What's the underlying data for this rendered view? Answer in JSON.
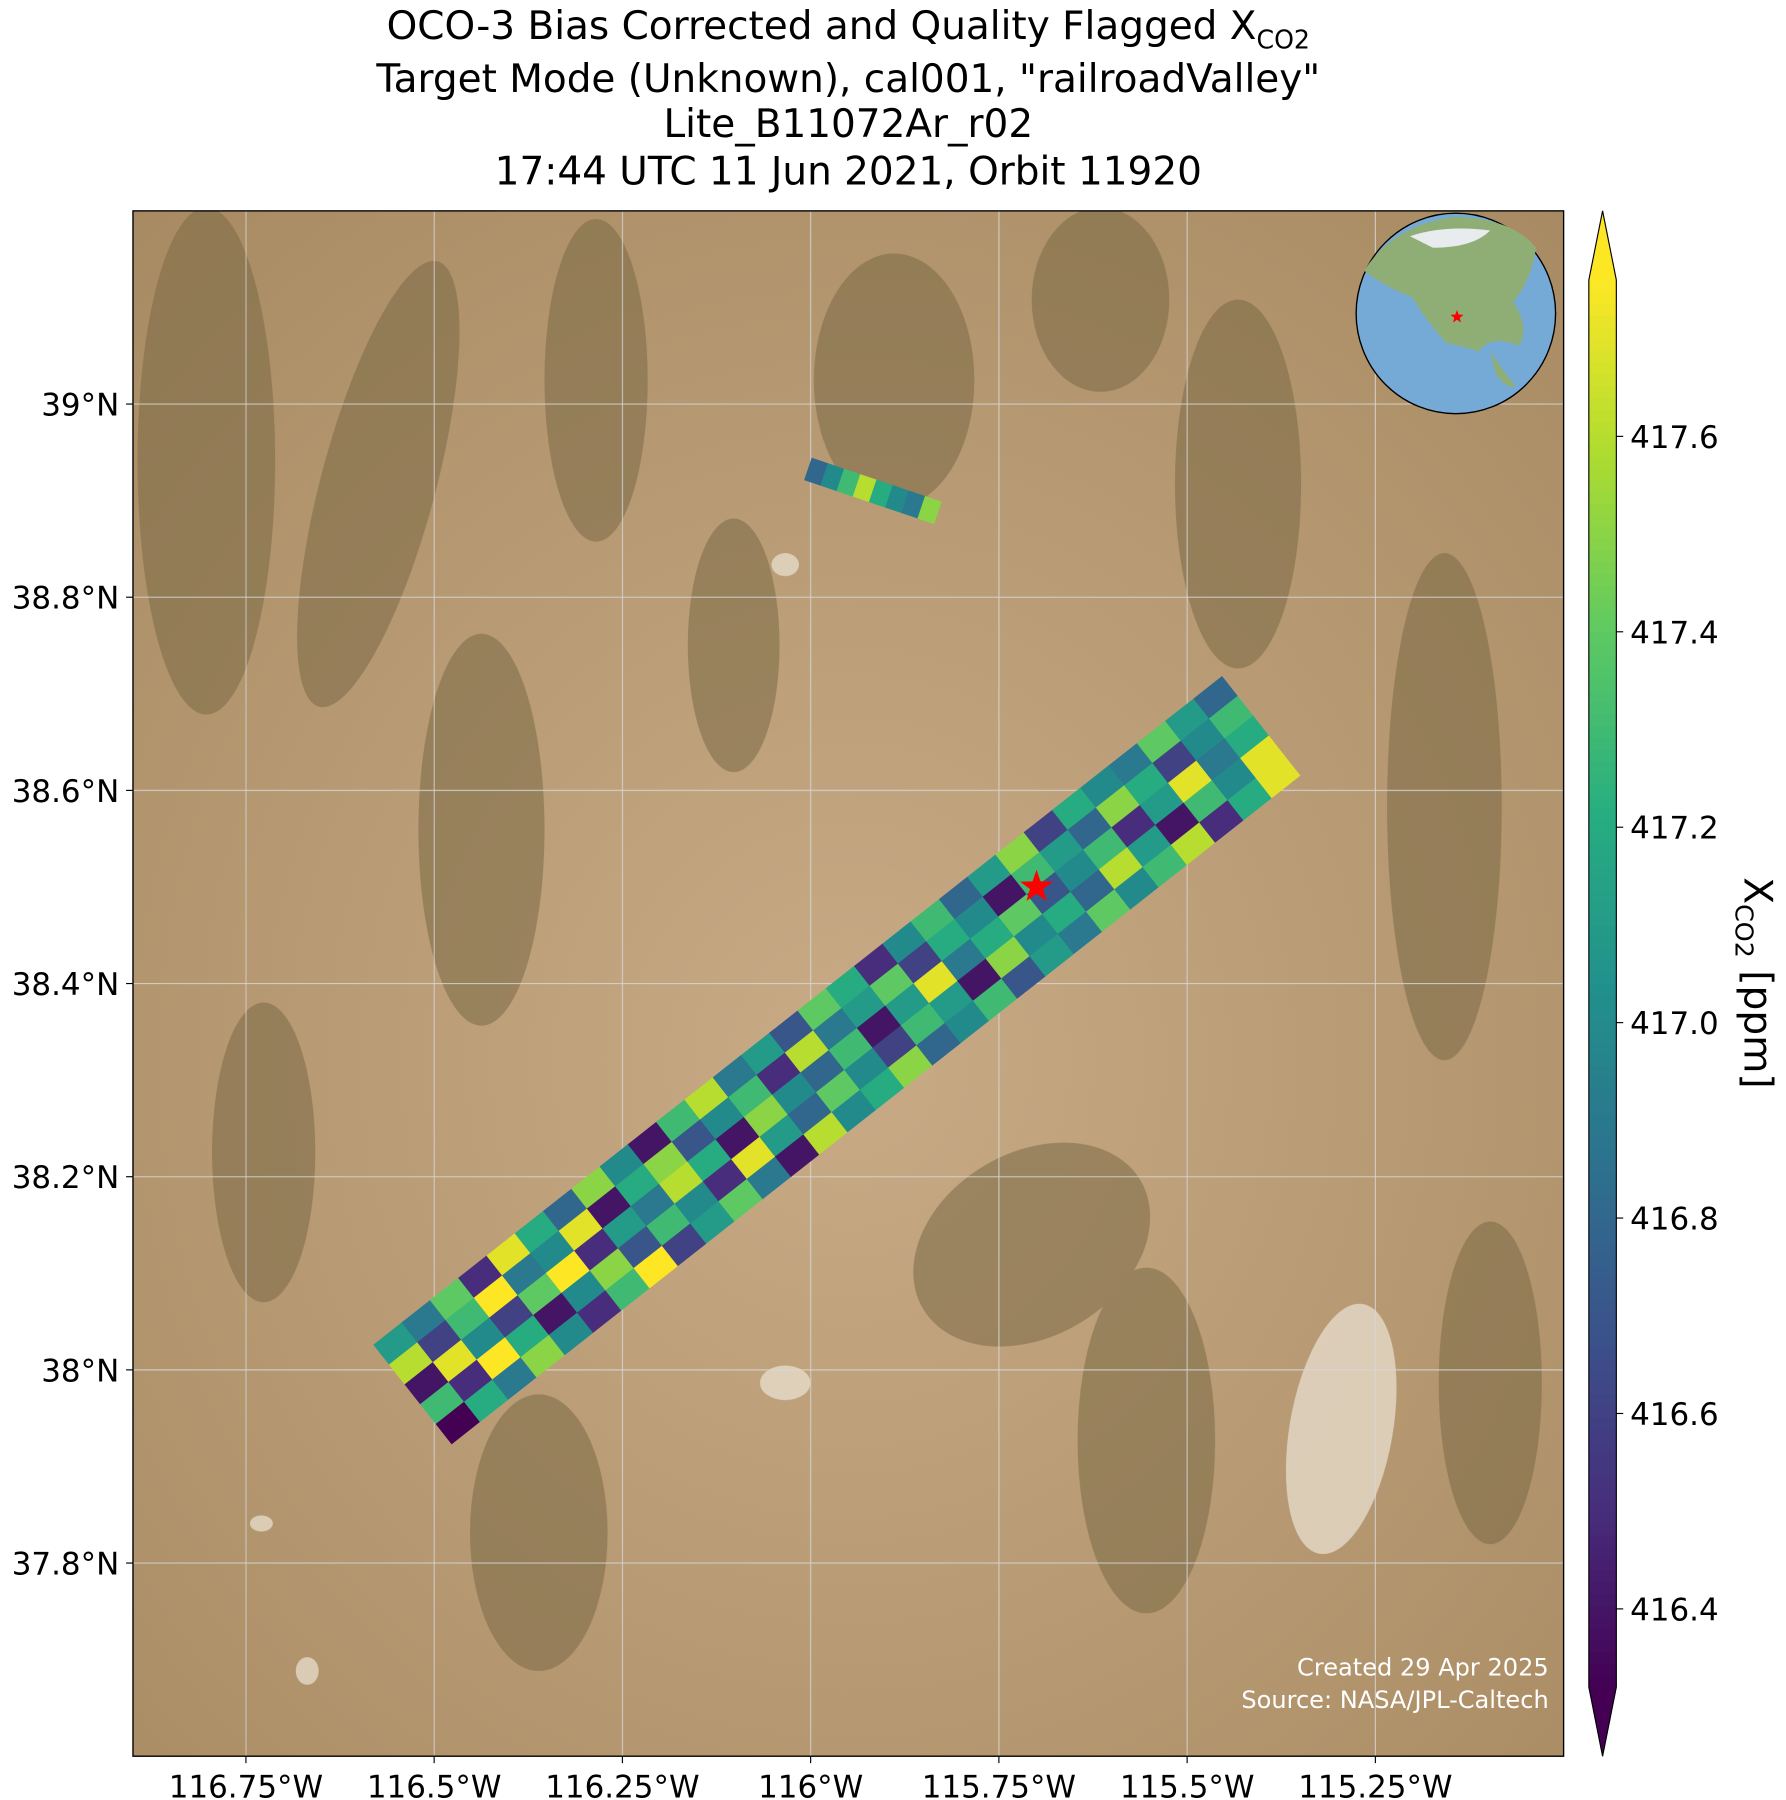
{
  "chart_data": {
    "type": "swath_map",
    "title_main": "OCO-3 Bias Corrected and Quality Flagged X",
    "title_sub": "CO2",
    "subtitle": [
      "Target Mode (Unknown), cal001, \"railroadValley\"",
      "Lite_B11072Ar_r02",
      "17:44 UTC 11 Jun 2021, Orbit 11920"
    ],
    "xlim": [
      -116.9,
      -115.0
    ],
    "ylim": [
      37.6,
      39.2
    ],
    "xticks": [
      {
        "value": -116.75,
        "label": "116.75°W"
      },
      {
        "value": -116.5,
        "label": "116.5°W"
      },
      {
        "value": -116.25,
        "label": "116.25°W"
      },
      {
        "value": -116,
        "label": "116°W"
      },
      {
        "value": -115.75,
        "label": "115.75°W"
      },
      {
        "value": -115.5,
        "label": "115.5°W"
      },
      {
        "value": -115.25,
        "label": "115.25°W"
      }
    ],
    "yticks": [
      {
        "value": 37.8,
        "label": "37.8°N"
      },
      {
        "value": 38,
        "label": "38°N"
      },
      {
        "value": 38.2,
        "label": "38.2°N"
      },
      {
        "value": 38.4,
        "label": "38.4°N"
      },
      {
        "value": 38.6,
        "label": "38.6°N"
      },
      {
        "value": 38.8,
        "label": "38.8°N"
      },
      {
        "value": 39,
        "label": "39°N"
      }
    ],
    "grid": true,
    "colormap": "viridis",
    "clim": [
      416.32,
      417.76
    ],
    "cticks": [
      416.4,
      416.6,
      416.8,
      {
        "value": 417,
        "label": "417.0"
      },
      417.2,
      417.4,
      417.6
    ],
    "colorbar_label": {
      "main": "X",
      "sub": "CO2",
      "unit": " [ppm]"
    },
    "target": {
      "lon": -115.7,
      "lat": 38.5,
      "color": "#ff0000"
    },
    "annotations": [
      "Created 29 Apr 2025",
      "Source: NASA/JPL-Caltech"
    ],
    "swath": {
      "values": [
        [
          417.1,
          416.9,
          417.4,
          416.5,
          417.7,
          417.2,
          416.8,
          417.5,
          417.0,
          416.4,
          417.3,
          417.6,
          416.9,
          417.1,
          416.7,
          417.4,
          417.2,
          416.5,
          417.0,
          417.3,
          416.8,
          417.1,
          417.5,
          416.6,
          417.2,
          417.0,
          416.9,
          417.4,
          417.1,
          416.8
        ],
        [
          417.6,
          416.6,
          417.3,
          417.8,
          416.9,
          417.0,
          417.7,
          416.4,
          417.2,
          417.5,
          416.7,
          417.0,
          417.3,
          416.5,
          417.6,
          416.9,
          417.1,
          417.4,
          416.6,
          417.2,
          417.0,
          416.4,
          417.3,
          417.1,
          416.8,
          417.5,
          417.2,
          416.6,
          417.0,
          417.3
        ],
        [
          416.4,
          417.7,
          417.0,
          416.6,
          417.4,
          417.8,
          416.5,
          417.1,
          416.9,
          417.6,
          417.2,
          416.4,
          417.5,
          417.0,
          416.8,
          417.3,
          416.4,
          417.1,
          417.7,
          416.9,
          417.2,
          417.4,
          416.7,
          417.0,
          417.3,
          416.5,
          417.1,
          417.7,
          416.9,
          417.2
        ],
        [
          417.3,
          416.5,
          417.8,
          417.2,
          416.4,
          417.0,
          417.5,
          416.7,
          417.3,
          417.0,
          416.5,
          417.7,
          417.1,
          416.8,
          417.4,
          417.0,
          416.6,
          417.3,
          417.1,
          416.4,
          417.5,
          417.0,
          417.2,
          416.8,
          417.6,
          417.1,
          416.4,
          417.3,
          417.0,
          417.7
        ],
        [
          416.3,
          417.2,
          416.9,
          417.5,
          417.0,
          416.5,
          417.3,
          417.8,
          416.6,
          417.1,
          417.4,
          416.9,
          416.4,
          417.6,
          417.0,
          417.2,
          417.5,
          416.8,
          417.0,
          417.3,
          416.7,
          417.1,
          416.9,
          417.4,
          417.0,
          417.3,
          417.6,
          416.5,
          417.2,
          417.7
        ]
      ]
    },
    "north_strip": {
      "values": [
        416.8,
        417.0,
        417.3,
        417.6,
        417.2,
        417.0,
        416.9,
        417.5
      ]
    }
  }
}
